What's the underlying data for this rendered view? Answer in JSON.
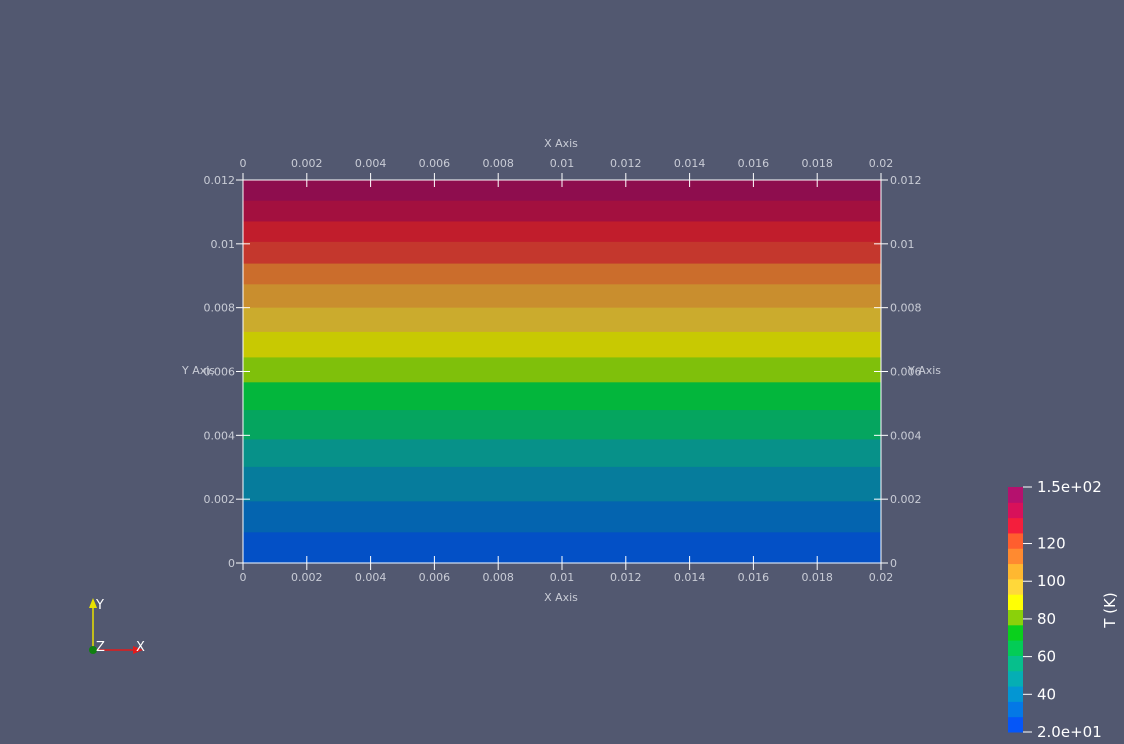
{
  "view": {
    "background": "#525870",
    "x_axis_title": "X Axis",
    "y_axis_title": "Y Axis",
    "x_ticks": [
      "0",
      "0.002",
      "0.004",
      "0.006",
      "0.008",
      "0.01",
      "0.012",
      "0.014",
      "0.016",
      "0.018",
      "0.02"
    ],
    "y_ticks": [
      "0",
      "0.002",
      "0.004",
      "0.006",
      "0.008",
      "0.01",
      "0.012"
    ],
    "x_range": [
      0,
      0.02
    ],
    "y_range": [
      0,
      0.012
    ],
    "band_colors": [
      "#0350c6",
      "#0464af",
      "#067c9c",
      "#079189",
      "#05a55f",
      "#03b63c",
      "#7fc00b",
      "#c8c902",
      "#cbab2d",
      "#c98e2e",
      "#cb6d2c",
      "#c4372d",
      "#c11d2c",
      "#a3103f",
      "#8e0d4e"
    ],
    "band_edges": [
      0,
      0.00098,
      0.00195,
      0.00303,
      0.00389,
      0.00481,
      0.00568,
      0.00646,
      0.00726,
      0.00802,
      0.00875,
      0.0094,
      0.01008,
      0.01072,
      0.01137,
      0.012
    ]
  },
  "colorbar": {
    "title": "T (K)",
    "labels": [
      {
        "text": "1.5e+02",
        "value": 150
      },
      {
        "text": "120",
        "value": 120
      },
      {
        "text": "100",
        "value": 100
      },
      {
        "text": "80",
        "value": 80
      },
      {
        "text": "60",
        "value": 60
      },
      {
        "text": "40",
        "value": 40
      },
      {
        "text": "2.0e+01",
        "value": 20
      }
    ],
    "range": [
      20,
      150
    ],
    "colors": [
      "#0556f8",
      "#0478e6",
      "#0396d3",
      "#05aeb4",
      "#06bf8c",
      "#03cc56",
      "#0ad01c",
      "#8bd10a",
      "#ffff04",
      "#ffd83a",
      "#ffb830",
      "#ff8a30",
      "#ff5e2e",
      "#f41e3c",
      "#d8115a",
      "#b5116e"
    ]
  },
  "orientation": {
    "x_label": "X",
    "y_label": "Y",
    "z_label": "Z",
    "x_color": "#e31a1a",
    "y_color": "#e8e000",
    "z_color": "#108010"
  }
}
